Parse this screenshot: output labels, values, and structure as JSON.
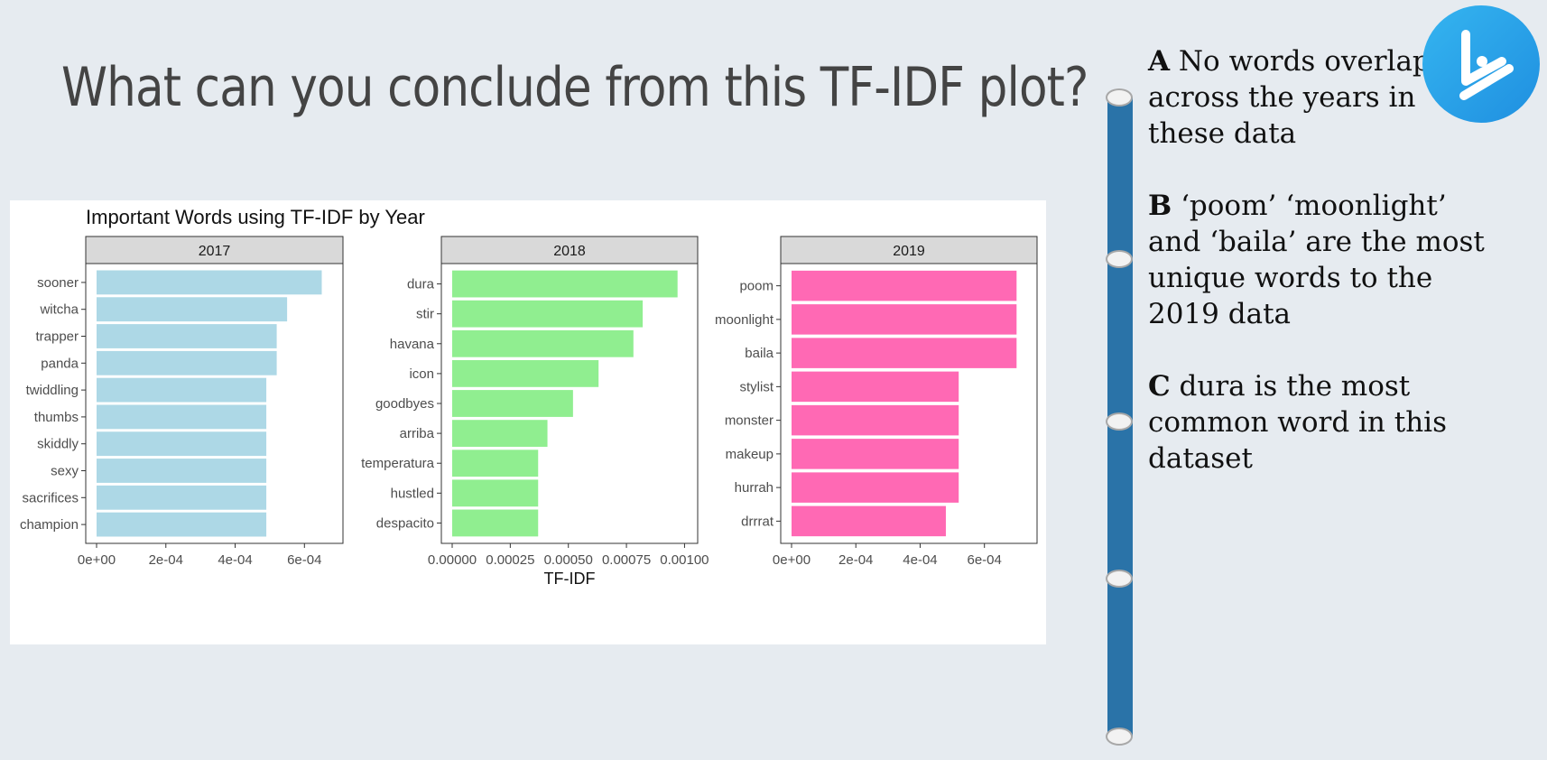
{
  "slide": {
    "title": "What can you conclude from this TF-IDF plot?",
    "options": [
      {
        "letter": "A",
        "text": "No words overlap across the years in these data"
      },
      {
        "letter": "B",
        "text": "‘poom’ ‘moonlight’ and ‘baila’ are the most unique words to the 2019 data"
      },
      {
        "letter": "C",
        "text": "dura is the most common word in this dataset"
      }
    ],
    "logo_icon": "play-logo-icon",
    "colors": {
      "background": "#e6ebf0",
      "timeline": "#2a73a8",
      "logo": "#1f8fe0"
    }
  },
  "chart_data": [
    {
      "type": "bar",
      "orientation": "horizontal",
      "title": "Important Words using TF-IDF by Year",
      "panel": "2017",
      "xlabel": "",
      "color": "#add8e6",
      "xlim": [
        0,
        0.00068
      ],
      "xticks": [
        0,
        0.0002,
        0.0004,
        0.0006
      ],
      "xtick_labels": [
        "0e+00",
        "2e-04",
        "4e-04",
        "6e-04"
      ],
      "categories": [
        "sooner",
        "witcha",
        "trapper",
        "panda",
        "twiddling",
        "thumbs",
        "skiddly",
        "sexy",
        "sacrifices",
        "champion"
      ],
      "values": [
        0.00065,
        0.00055,
        0.00052,
        0.00052,
        0.00049,
        0.00049,
        0.00049,
        0.00049,
        0.00049,
        0.00049
      ]
    },
    {
      "type": "bar",
      "orientation": "horizontal",
      "panel": "2018",
      "xlabel": "TF-IDF",
      "color": "#90ee90",
      "xlim": [
        0,
        0.00101
      ],
      "xticks": [
        0,
        0.00025,
        0.0005,
        0.00075,
        0.001
      ],
      "xtick_labels": [
        "0.00000",
        "0.00025",
        "0.00050",
        "0.00075",
        "0.00100"
      ],
      "categories": [
        "dura",
        "stir",
        "havana",
        "icon",
        "goodbyes",
        "arriba",
        "temperatura",
        "hustled",
        "despacito"
      ],
      "values": [
        0.00097,
        0.00082,
        0.00078,
        0.00063,
        0.00052,
        0.00041,
        0.00037,
        0.00037,
        0.00037
      ]
    },
    {
      "type": "bar",
      "orientation": "horizontal",
      "panel": "2019",
      "xlabel": "",
      "color": "#ff69b4",
      "xlim": [
        0,
        0.00073
      ],
      "xticks": [
        0,
        0.0002,
        0.0004,
        0.0006
      ],
      "xtick_labels": [
        "0e+00",
        "2e-04",
        "4e-04",
        "6e-04"
      ],
      "categories": [
        "poom",
        "moonlight",
        "baila",
        "stylist",
        "monster",
        "makeup",
        "hurrah",
        "drrrat"
      ],
      "values": [
        0.0007,
        0.0007,
        0.0007,
        0.00052,
        0.00052,
        0.00052,
        0.00052,
        0.00048
      ]
    }
  ]
}
